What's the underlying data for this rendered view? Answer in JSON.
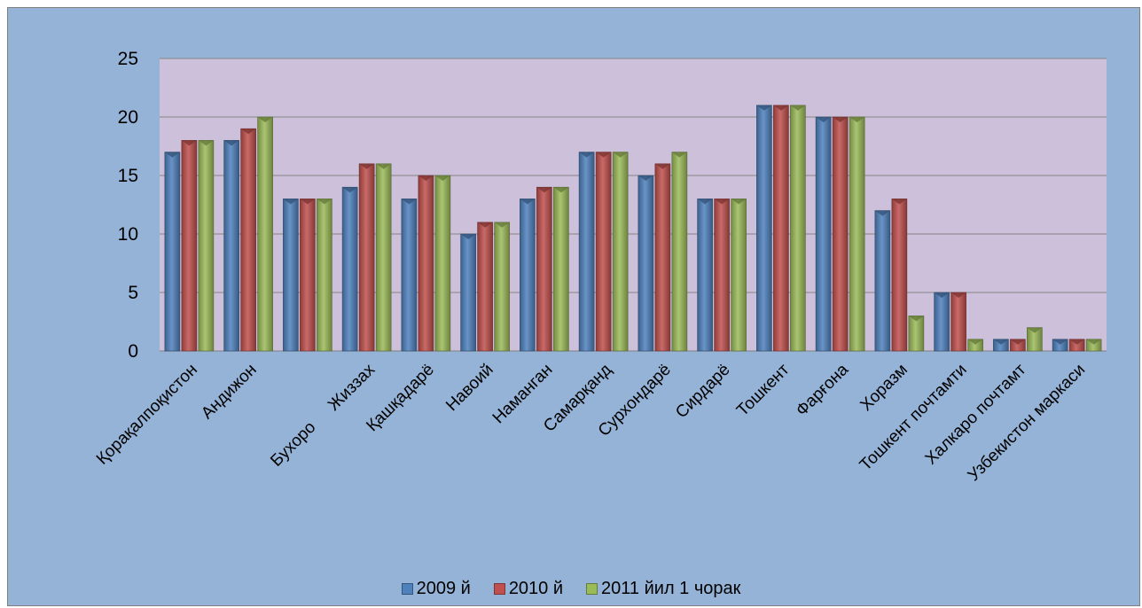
{
  "chart_data": {
    "type": "bar",
    "categories": [
      "Қорақалпоқистон",
      "Андижон",
      "Бухоро",
      "Жиззах",
      "Қашқадарё",
      "Навоий",
      "Наманган",
      "Самарқанд",
      "Сурхондарё",
      "Сирдарё",
      "Тошкент",
      "Фарғона",
      "Хоразм",
      "Тошкент  почтамти",
      "Халкаро почтамт",
      "Узбекистон маркаси"
    ],
    "series": [
      {
        "name": "2009 й",
        "color": "#4f81bd",
        "values": [
          17,
          18,
          13,
          14,
          13,
          10,
          13,
          17,
          15,
          13,
          21,
          20,
          12,
          5,
          1,
          1
        ]
      },
      {
        "name": "2010 й",
        "color": "#c0504d",
        "values": [
          18,
          19,
          13,
          16,
          15,
          11,
          14,
          17,
          16,
          13,
          21,
          20,
          13,
          5,
          1,
          1
        ]
      },
      {
        "name": "2011 йил 1 чорак",
        "color": "#9bbb59",
        "values": [
          18,
          20,
          13,
          16,
          15,
          11,
          14,
          17,
          17,
          13,
          21,
          20,
          3,
          1,
          2,
          1
        ]
      }
    ],
    "ylim": [
      0,
      25
    ],
    "yticks": [
      "0",
      "5",
      "10",
      "15",
      "20",
      "25"
    ],
    "grid": true,
    "legend_position": "bottom",
    "plot_background": "#ccc0da",
    "chart_background": "#95b3d7"
  }
}
